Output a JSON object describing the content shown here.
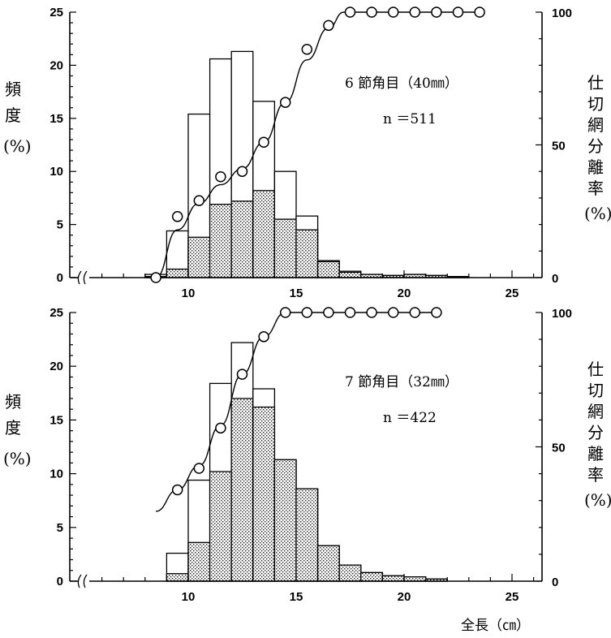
{
  "chart_data": [
    {
      "type": "bar",
      "panel": "top",
      "annotation": "6 節角目（40㎜）",
      "n_label": "n ＝511",
      "y_left_label": [
        "頻",
        "度",
        "(%)"
      ],
      "y_right_label": [
        "仕",
        "切",
        "網",
        "分",
        "離",
        "率",
        "(%)"
      ],
      "x_ticks": [
        10,
        15,
        20,
        25
      ],
      "y_left_ticks": [
        0,
        5,
        10,
        15,
        20,
        25
      ],
      "y_right_ticks": [
        0,
        50,
        100
      ],
      "ylim_left": [
        0,
        25
      ],
      "ylim_right": [
        0,
        100
      ],
      "bins": [
        {
          "x": 8,
          "total": 0.3,
          "retained": 0.1
        },
        {
          "x": 9,
          "total": 4.4,
          "retained": 0.8
        },
        {
          "x": 10,
          "total": 15.4,
          "retained": 3.8
        },
        {
          "x": 11,
          "total": 20.6,
          "retained": 6.9
        },
        {
          "x": 12,
          "total": 21.3,
          "retained": 7.2
        },
        {
          "x": 13,
          "total": 16.6,
          "retained": 8.2
        },
        {
          "x": 14,
          "total": 10.0,
          "retained": 5.5
        },
        {
          "x": 15,
          "total": 5.8,
          "retained": 4.5
        },
        {
          "x": 16,
          "total": 1.6,
          "retained": 1.5
        },
        {
          "x": 17,
          "total": 0.6,
          "retained": 0.5
        },
        {
          "x": 18,
          "total": 0.3,
          "retained": 0.3
        },
        {
          "x": 19,
          "total": 0.2,
          "retained": 0.2
        },
        {
          "x": 20,
          "total": 0.3,
          "retained": 0.3
        },
        {
          "x": 21,
          "total": 0.2,
          "retained": 0.2
        },
        {
          "x": 22,
          "total": 0.1,
          "retained": 0.1
        }
      ],
      "points": [
        {
          "x": 8.5,
          "y": 0
        },
        {
          "x": 9.5,
          "y": 23
        },
        {
          "x": 10.5,
          "y": 29
        },
        {
          "x": 11.5,
          "y": 38
        },
        {
          "x": 12.5,
          "y": 40
        },
        {
          "x": 13.5,
          "y": 51
        },
        {
          "x": 14.5,
          "y": 66
        },
        {
          "x": 15.5,
          "y": 86
        },
        {
          "x": 16.5,
          "y": 95
        },
        {
          "x": 17.5,
          "y": 100
        },
        {
          "x": 18.5,
          "y": 100
        },
        {
          "x": 19.5,
          "y": 100
        },
        {
          "x": 20.5,
          "y": 100
        },
        {
          "x": 21.5,
          "y": 100
        },
        {
          "x": 22.5,
          "y": 100
        },
        {
          "x": 23.5,
          "y": 100
        }
      ],
      "curve": [
        [
          8.5,
          0
        ],
        [
          9.5,
          18
        ],
        [
          10.5,
          28
        ],
        [
          11.5,
          35
        ],
        [
          12.5,
          41
        ],
        [
          13.5,
          51
        ],
        [
          14.5,
          66
        ],
        [
          15.5,
          82
        ],
        [
          16.5,
          94
        ],
        [
          17.2,
          100
        ],
        [
          23.5,
          100
        ]
      ]
    },
    {
      "type": "bar",
      "panel": "bottom",
      "annotation": "7 節角目（32㎜）",
      "n_label": "n ＝422",
      "y_left_label": [
        "頻",
        "度",
        "(%)"
      ],
      "y_right_label": [
        "仕",
        "切",
        "網",
        "分",
        "離",
        "率",
        "(%)"
      ],
      "x_ticks": [
        10,
        15,
        20,
        25
      ],
      "y_left_ticks": [
        0,
        5,
        10,
        15,
        20,
        25
      ],
      "y_right_ticks": [
        0,
        50,
        100
      ],
      "ylim_left": [
        0,
        25
      ],
      "ylim_right": [
        0,
        100
      ],
      "xlabel": "全長（㎝）",
      "bins": [
        {
          "x": 9,
          "total": 2.6,
          "retained": 0.7
        },
        {
          "x": 10,
          "total": 9.4,
          "retained": 3.6
        },
        {
          "x": 11,
          "total": 18.4,
          "retained": 10.2
        },
        {
          "x": 12,
          "total": 22.2,
          "retained": 17.0
        },
        {
          "x": 13,
          "total": 17.9,
          "retained": 16.2
        },
        {
          "x": 14,
          "total": 11.3,
          "retained": 11.3
        },
        {
          "x": 15,
          "total": 8.6,
          "retained": 8.6
        },
        {
          "x": 16,
          "total": 3.3,
          "retained": 3.3
        },
        {
          "x": 17,
          "total": 1.5,
          "retained": 1.5
        },
        {
          "x": 18,
          "total": 0.8,
          "retained": 0.8
        },
        {
          "x": 19,
          "total": 0.5,
          "retained": 0.5
        },
        {
          "x": 20,
          "total": 0.4,
          "retained": 0.4
        },
        {
          "x": 21,
          "total": 0.2,
          "retained": 0.2
        }
      ],
      "points": [
        {
          "x": 9.5,
          "y": 34
        },
        {
          "x": 10.5,
          "y": 42
        },
        {
          "x": 11.5,
          "y": 57
        },
        {
          "x": 12.5,
          "y": 77
        },
        {
          "x": 13.5,
          "y": 91
        },
        {
          "x": 14.5,
          "y": 100
        },
        {
          "x": 15.5,
          "y": 100
        },
        {
          "x": 16.5,
          "y": 100
        },
        {
          "x": 17.5,
          "y": 100
        },
        {
          "x": 18.5,
          "y": 100
        },
        {
          "x": 19.5,
          "y": 100
        },
        {
          "x": 20.5,
          "y": 100
        },
        {
          "x": 21.5,
          "y": 100
        }
      ],
      "curve": [
        [
          8.5,
          26
        ],
        [
          9.5,
          34
        ],
        [
          10.5,
          43
        ],
        [
          11.5,
          58
        ],
        [
          12.5,
          77
        ],
        [
          13.5,
          91
        ],
        [
          14.5,
          100
        ],
        [
          21.5,
          100
        ]
      ]
    }
  ]
}
